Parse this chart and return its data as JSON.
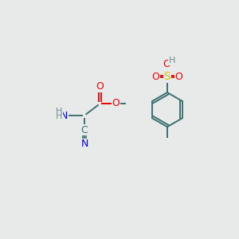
{
  "background_color": "#e8eaea",
  "bond_color": "#3d7070",
  "atom_colors": {
    "N": "#0000ee",
    "O": "#ee0000",
    "S": "#cccc00",
    "H": "#6b9090"
  },
  "figsize": [
    3.0,
    3.0
  ],
  "dpi": 100
}
